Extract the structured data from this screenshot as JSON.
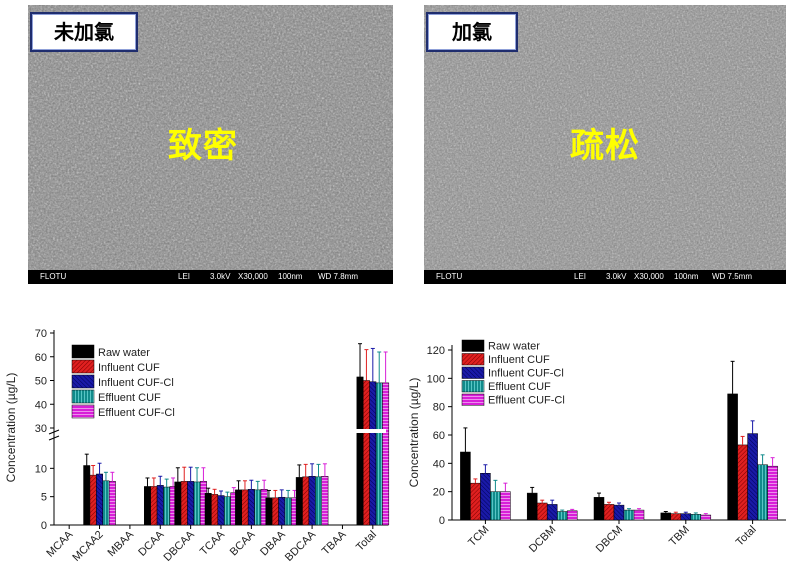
{
  "panels": [
    {
      "label": "未加氯",
      "overlay": "致密",
      "meta": {
        "org": "FLOTU",
        "detector": "LEI",
        "voltage": "3.0kV",
        "mag": "X30,000",
        "scale": "100nm",
        "wd": "WD 7.8mm"
      }
    },
    {
      "label": "加氯",
      "overlay": "疏松",
      "meta": {
        "org": "FLOTU",
        "detector": "LEI",
        "voltage": "3.0kV",
        "mag": "X30,000",
        "scale": "100nm",
        "wd": "WD 7.5mm"
      }
    }
  ],
  "colors": {
    "raw_water": "#000000",
    "influent_cuf": "#e02020",
    "influent_cuf_cl": "#1a1aa8",
    "effluent_cuf": "#118b8b",
    "effluent_cuf_cl": "#d81fd8",
    "label_border": "#1f2d6e",
    "overlay_text": "#ffff00"
  },
  "chart_data": [
    {
      "type": "bar",
      "ylabel": "Concentration (µg/L)",
      "categories": [
        "MCAA",
        "MCAA2",
        "MBAA",
        "DCAA",
        "DBCAA",
        "TCAA",
        "BCAA",
        "DBAA",
        "BDCAA",
        "TBAA",
        "Total"
      ],
      "axis_break": {
        "lower": [
          0,
          15
        ],
        "upper": [
          30,
          70
        ]
      },
      "yticks": [
        0,
        5,
        10,
        30,
        40,
        50,
        60,
        70
      ],
      "legend": "top-left",
      "series": [
        {
          "name": "Raw water",
          "values": [
            0,
            10.5,
            0,
            6.8,
            7.6,
            5.6,
            6.2,
            4.8,
            8.4,
            0,
            51.5
          ],
          "errors": [
            0,
            2.0,
            0,
            1.5,
            2.5,
            0.9,
            1.6,
            1.3,
            2.2,
            0,
            14
          ]
        },
        {
          "name": "Influent CUF",
          "values": [
            0,
            8.8,
            0,
            6.8,
            7.7,
            5.4,
            6.2,
            4.8,
            8.5,
            0,
            50
          ],
          "errors": [
            0,
            1.7,
            0,
            1.5,
            2.5,
            0.9,
            1.6,
            1.3,
            2.2,
            0,
            13
          ]
        },
        {
          "name": "Influent CUF-Cl",
          "values": [
            0,
            9.0,
            0,
            7.0,
            7.7,
            5.2,
            6.3,
            4.9,
            8.6,
            0,
            49.5
          ],
          "errors": [
            0,
            1.9,
            0,
            1.6,
            2.5,
            0.8,
            1.6,
            1.3,
            2.2,
            0,
            14
          ]
        },
        {
          "name": "Effluent CUF",
          "values": [
            0,
            7.8,
            0,
            6.7,
            7.6,
            5.0,
            6.2,
            4.8,
            8.5,
            0,
            49
          ],
          "errors": [
            0,
            1.5,
            0,
            1.4,
            2.5,
            0.8,
            1.5,
            1.3,
            2.2,
            0,
            13
          ]
        },
        {
          "name": "Effluent CUF-Cl",
          "values": [
            0,
            7.7,
            0,
            6.8,
            7.7,
            5.7,
            6.3,
            4.8,
            8.6,
            0,
            49
          ],
          "errors": [
            0,
            1.6,
            0,
            1.5,
            2.4,
            0.9,
            1.6,
            1.3,
            2.2,
            0,
            13
          ]
        }
      ]
    },
    {
      "type": "bar",
      "ylabel": "Concentration (µg/L)",
      "categories": [
        "TCM",
        "DCBM",
        "DBCM",
        "TBM",
        "Total"
      ],
      "ylim": [
        0,
        120
      ],
      "yticks": [
        0,
        20,
        40,
        60,
        80,
        100,
        120
      ],
      "legend": "top-left",
      "series": [
        {
          "name": "Raw water",
          "values": [
            48,
            19,
            16,
            5,
            89
          ],
          "errors": [
            17,
            4,
            3,
            1,
            23
          ]
        },
        {
          "name": "Influent CUF",
          "values": [
            26,
            12,
            11,
            4.5,
            53
          ],
          "errors": [
            3,
            2,
            1.5,
            1,
            6
          ]
        },
        {
          "name": "Influent CUF-Cl",
          "values": [
            33,
            11,
            10.5,
            4.5,
            61
          ],
          "errors": [
            6,
            3,
            1.5,
            1,
            9
          ]
        },
        {
          "name": "Effluent CUF",
          "values": [
            20,
            6,
            7,
            4,
            39
          ],
          "errors": [
            8,
            1,
            1,
            1,
            7
          ]
        },
        {
          "name": "Effluent CUF-Cl",
          "values": [
            20,
            6.5,
            7,
            3.5,
            38
          ],
          "errors": [
            6,
            1,
            1,
            1,
            6
          ]
        }
      ]
    }
  ]
}
